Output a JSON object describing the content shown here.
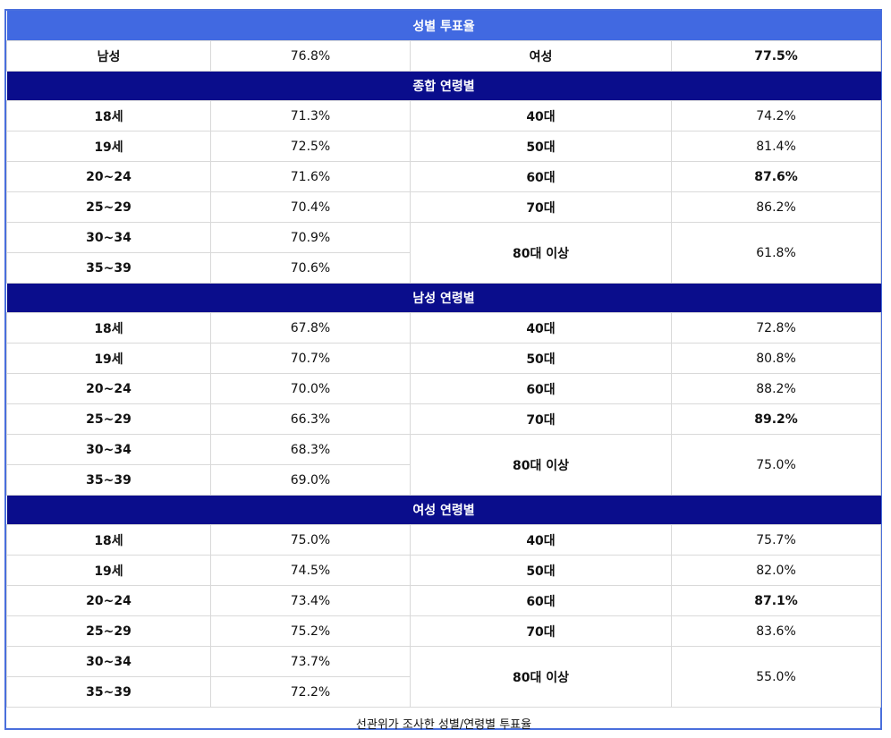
{
  "gender_section": {
    "title": "성별 투표율",
    "male_label": "남성",
    "male_value": "76.8%",
    "female_label": "여성",
    "female_value": "77.5%"
  },
  "sections": [
    {
      "title": "종합 연령별",
      "young": [
        [
          "18세",
          "71.3%"
        ],
        [
          "19세",
          "72.5%"
        ],
        [
          "20~24",
          "71.6%"
        ],
        [
          "25~29",
          "70.4%"
        ],
        [
          "30~34",
          "70.9%"
        ],
        [
          "35~39",
          "70.6%"
        ]
      ],
      "old": [
        [
          "40대",
          "74.2%"
        ],
        [
          "50대",
          "81.4%"
        ],
        [
          "60대",
          "87.6%"
        ],
        [
          "70대",
          "86.2%"
        ],
        [
          "80대 이상",
          "61.8%"
        ]
      ]
    },
    {
      "title": "남성 연령별",
      "young": [
        [
          "18세",
          "67.8%"
        ],
        [
          "19세",
          "70.7%"
        ],
        [
          "20~24",
          "70.0%"
        ],
        [
          "25~29",
          "66.3%"
        ],
        [
          "30~34",
          "68.3%"
        ],
        [
          "35~39",
          "69.0%"
        ]
      ],
      "old": [
        [
          "40대",
          "72.8%"
        ],
        [
          "50대",
          "80.8%"
        ],
        [
          "60대",
          "88.2%"
        ],
        [
          "70대",
          "89.2%"
        ],
        [
          "80대 이상",
          "75.0%"
        ]
      ]
    },
    {
      "title": "여성 연령별",
      "young": [
        [
          "18세",
          "75.0%"
        ],
        [
          "19세",
          "74.5%"
        ],
        [
          "20~24",
          "73.4%"
        ],
        [
          "25~29",
          "75.2%"
        ],
        [
          "30~34",
          "73.7%"
        ],
        [
          "35~39",
          "72.2%"
        ]
      ],
      "old": [
        [
          "40대",
          "75.7%"
        ],
        [
          "50대",
          "82.0%"
        ],
        [
          "60대",
          "87.1%"
        ],
        [
          "70대",
          "83.6%"
        ],
        [
          "80대 이상",
          "55.0%"
        ]
      ]
    }
  ],
  "footer_note": "선관위가 조사한 성별/연령별 투표율",
  "colors": {
    "header_top": "#4169e1",
    "header_navy": "#0a0d8c"
  }
}
